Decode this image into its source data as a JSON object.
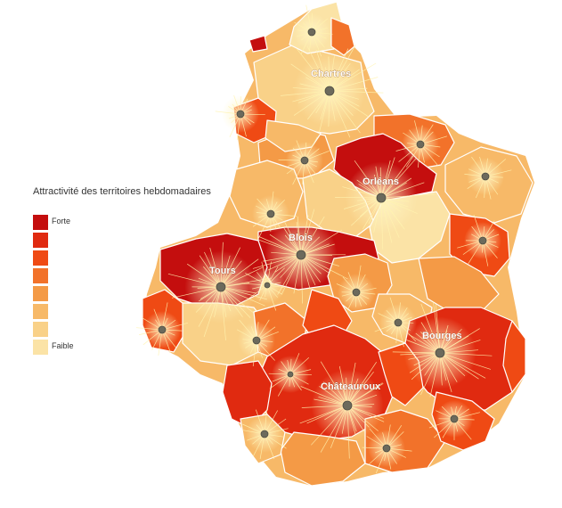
{
  "legend": {
    "title": "Attractivité des territoires hebdomadaires",
    "high_label": "Forte",
    "low_label": "Faible",
    "classes": [
      {
        "label": "Forte",
        "color": "#c40e0e"
      },
      {
        "label": "",
        "color": "#e02a10"
      },
      {
        "label": "",
        "color": "#ef4a14"
      },
      {
        "label": "",
        "color": "#f2722a"
      },
      {
        "label": "",
        "color": "#f49a46"
      },
      {
        "label": "",
        "color": "#f7b968"
      },
      {
        "label": "",
        "color": "#f9d188"
      },
      {
        "label": "Faible",
        "color": "#fbe3a6"
      }
    ]
  },
  "cities": [
    {
      "name": "Chartres",
      "level": 6
    },
    {
      "name": "Orléans",
      "level": 0
    },
    {
      "name": "Blois",
      "level": 0
    },
    {
      "name": "Tours",
      "level": 0
    },
    {
      "name": "Bourges",
      "level": 1
    },
    {
      "name": "Châteauroux",
      "level": 1
    }
  ],
  "colors": {
    "background": "#ffffff",
    "zone_border": "#ffffff",
    "pole": "#6c6a5c",
    "ray": "#fff3b0"
  }
}
